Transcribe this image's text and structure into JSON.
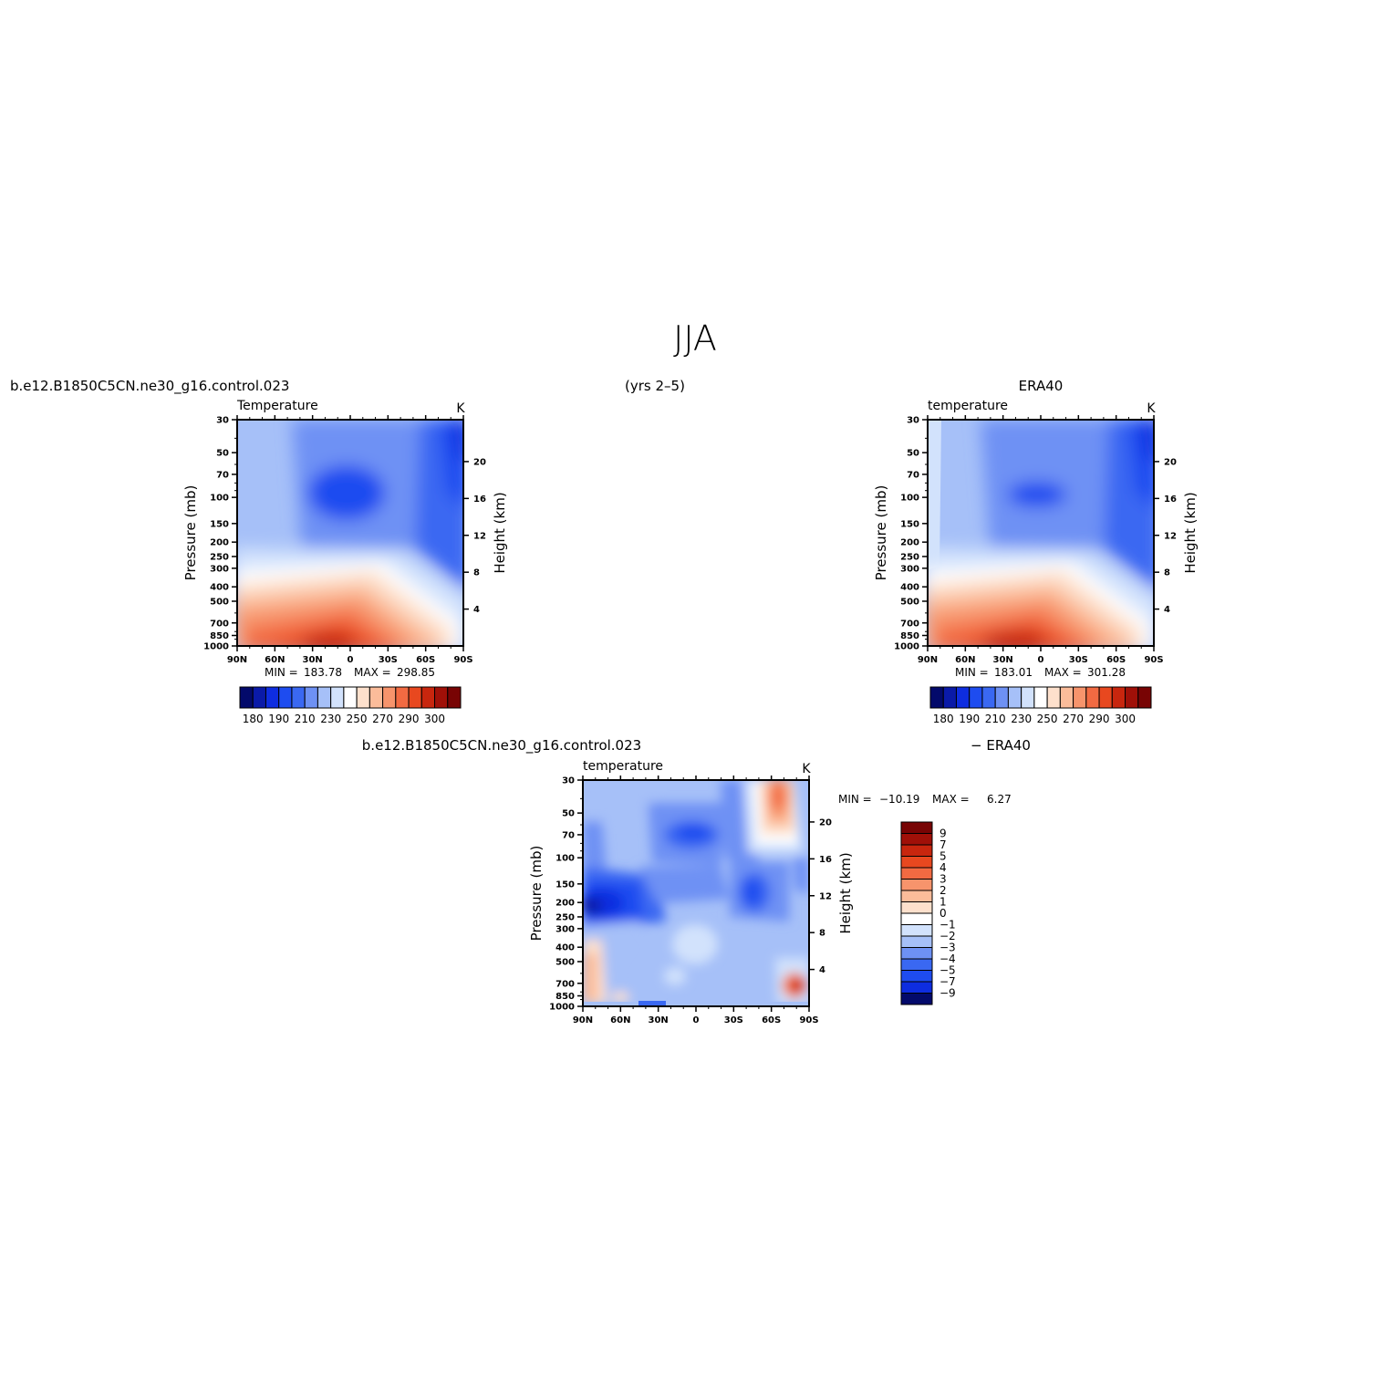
{
  "page_title": "JJA",
  "chart_data": [
    {
      "type": "heatmap",
      "panel": "model",
      "case_name": "b.e12.B1850C5CN.ne30_g16.control.023",
      "period": "(yrs 2–5)",
      "field_label": "Temperature",
      "units": "K",
      "ylabel": "Pressure (mb)",
      "ylabel_right": "Height (km)",
      "x_ticks": [
        "90N",
        "60N",
        "30N",
        "0",
        "30S",
        "60S",
        "90S"
      ],
      "x_range": [
        90,
        -90
      ],
      "pressure_ticks": [
        30,
        50,
        70,
        100,
        150,
        200,
        250,
        300,
        400,
        500,
        700,
        850,
        1000
      ],
      "pressure_range": [
        30,
        1000
      ],
      "pressure_scale": "log",
      "height_ticks": [
        20,
        16,
        12,
        8,
        4
      ],
      "min_label": "MIN =",
      "min_value": "183.78",
      "max_label": "MAX =",
      "max_value": "298.85",
      "colorbar_levels": [
        180,
        185,
        190,
        195,
        200,
        210,
        220,
        230,
        240,
        250,
        260,
        270,
        280,
        290,
        295,
        300
      ],
      "colorbar_labels": [
        "180",
        "190",
        "210",
        "230",
        "250",
        "270",
        "290",
        "300"
      ],
      "colorbar_colors": [
        "#030a6b",
        "#0a1aa8",
        "#0e2de0",
        "#1e4cf0",
        "#3a68f2",
        "#6e91f4",
        "#a6c0f8",
        "#d2e2fc",
        "#ffffff",
        "#fde0cc",
        "#fbbc9a",
        "#f7946c",
        "#f26a42",
        "#e8481f",
        "#c8260e",
        "#a01008",
        "#780404"
      ]
    },
    {
      "type": "heatmap",
      "panel": "observation",
      "dataset": "ERA40",
      "field_label": "temperature",
      "units": "K",
      "ylabel": "Pressure (mb)",
      "ylabel_right": "Height (km)",
      "x_ticks": [
        "90N",
        "60N",
        "30N",
        "0",
        "30S",
        "60S",
        "90S"
      ],
      "x_range": [
        90,
        -90
      ],
      "pressure_ticks": [
        30,
        50,
        70,
        100,
        150,
        200,
        250,
        300,
        400,
        500,
        700,
        850,
        1000
      ],
      "pressure_range": [
        30,
        1000
      ],
      "pressure_scale": "log",
      "height_ticks": [
        20,
        16,
        12,
        8,
        4
      ],
      "min_label": "MIN =",
      "min_value": "183.01",
      "max_label": "MAX =",
      "max_value": "301.28",
      "colorbar_labels": [
        "180",
        "190",
        "210",
        "230",
        "250",
        "270",
        "290",
        "300"
      ]
    },
    {
      "type": "heatmap",
      "panel": "difference",
      "case_name": "b.e12.B1850C5CN.ne30_g16.control.023",
      "diff_label": "− ERA40",
      "field_label": "temperature",
      "units": "K",
      "ylabel": "Pressure (mb)",
      "ylabel_right": "Height (km)",
      "x_ticks": [
        "90N",
        "60N",
        "30N",
        "0",
        "30S",
        "60S",
        "90S"
      ],
      "x_range": [
        90,
        -90
      ],
      "pressure_ticks": [
        30,
        50,
        70,
        100,
        150,
        200,
        250,
        300,
        400,
        500,
        700,
        850,
        1000
      ],
      "pressure_range": [
        30,
        1000
      ],
      "pressure_scale": "log",
      "height_ticks": [
        20,
        16,
        12,
        8,
        4
      ],
      "min_label": "MIN =",
      "min_value": "−10.19",
      "max_label": "MAX =",
      "max_value": "6.27",
      "colorbar_levels": [
        -9,
        -7,
        -5,
        -4,
        -3,
        -2,
        -1,
        0,
        1,
        2,
        3,
        4,
        5,
        7,
        9
      ],
      "colorbar_labels": [
        "9",
        "7",
        "5",
        "4",
        "3",
        "2",
        "1",
        "0",
        "−1",
        "−2",
        "−3",
        "−4",
        "−5",
        "−7",
        "−9"
      ],
      "colorbar_colors": [
        "#780404",
        "#a01008",
        "#c8260e",
        "#e8481f",
        "#f26a42",
        "#f7946c",
        "#fbbc9a",
        "#fde0cc",
        "#ffffff",
        "#d2e2fc",
        "#a6c0f8",
        "#6e91f4",
        "#3a68f2",
        "#1e4cf0",
        "#0e2de0",
        "#030a6b"
      ]
    }
  ]
}
